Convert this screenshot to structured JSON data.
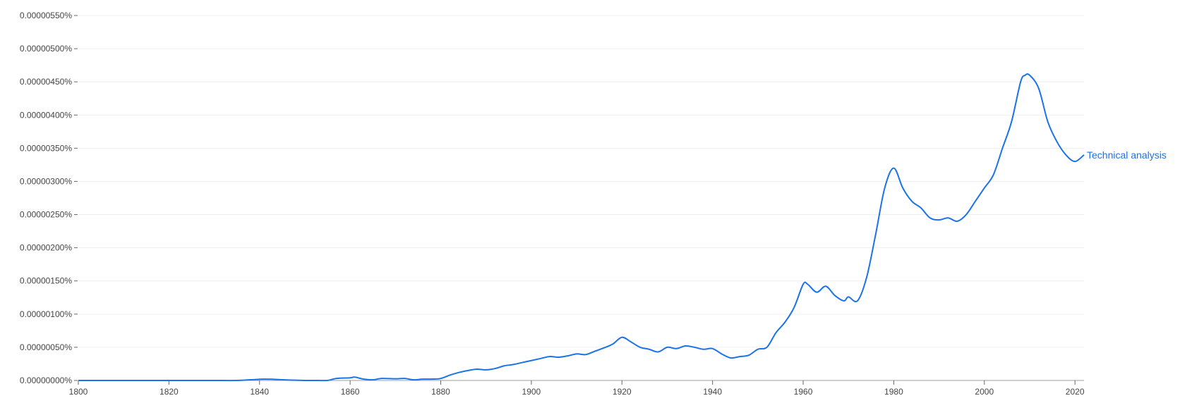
{
  "chart_data": {
    "type": "line",
    "title": "",
    "xlabel": "",
    "ylabel": "",
    "xlim": [
      1800,
      2022
    ],
    "ylim": [
      0,
      5.5e-06
    ],
    "grid": true,
    "legend": "end-of-line label",
    "x_ticks": [
      1800,
      1820,
      1840,
      1860,
      1880,
      1900,
      1920,
      1940,
      1960,
      1980,
      2000,
      2020
    ],
    "x_tick_labels": [
      "1800",
      "1820",
      "1840",
      "1860",
      "1880",
      "1900",
      "1920",
      "1940",
      "1960",
      "1980",
      "2000",
      "2020"
    ],
    "y_ticks": [
      0,
      5e-07,
      1e-06,
      1.5e-06,
      2e-06,
      2.5e-06,
      3e-06,
      3.5e-06,
      4e-06,
      4.5e-06,
      5e-06,
      5.5e-06
    ],
    "y_tick_labels": [
      "0.00000000%",
      "0.00000050%",
      "0.00000100%",
      "0.00000150%",
      "0.00000200%",
      "0.00000250%",
      "0.00000300%",
      "0.00000350%",
      "0.00000400%",
      "0.00000450%",
      "0.00000500%",
      "0.00000550%"
    ],
    "series": [
      {
        "name": "Technical analysis",
        "color": "#1a73e8",
        "x": [
          1800,
          1805,
          1810,
          1815,
          1820,
          1825,
          1830,
          1835,
          1838,
          1841,
          1844,
          1847,
          1850,
          1853,
          1855,
          1857,
          1860,
          1861,
          1863,
          1865,
          1867,
          1870,
          1872,
          1874,
          1876,
          1878,
          1880,
          1882,
          1884,
          1886,
          1888,
          1890,
          1892,
          1894,
          1896,
          1898,
          1900,
          1902,
          1904,
          1906,
          1908,
          1910,
          1912,
          1914,
          1916,
          1918,
          1920,
          1922,
          1924,
          1926,
          1928,
          1930,
          1932,
          1934,
          1936,
          1938,
          1940,
          1942,
          1944,
          1946,
          1948,
          1950,
          1952,
          1954,
          1956,
          1958,
          1960,
          1961,
          1963,
          1965,
          1967,
          1969,
          1970,
          1972,
          1974,
          1976,
          1978,
          1980,
          1982,
          1984,
          1986,
          1988,
          1990,
          1992,
          1994,
          1996,
          1998,
          2000,
          2002,
          2004,
          2006,
          2008,
          2009,
          2010,
          2012,
          2014,
          2016,
          2018,
          2020,
          2022
        ],
        "values": [
          0,
          0,
          0,
          0,
          0,
          0,
          0,
          0,
          1e-08,
          2e-08,
          1.5e-08,
          5e-09,
          0,
          0,
          0,
          3e-08,
          4e-08,
          5e-08,
          2e-08,
          1e-08,
          3e-08,
          2.5e-08,
          3e-08,
          1e-08,
          2e-08,
          2e-08,
          3e-08,
          8e-08,
          1.2e-07,
          1.5e-07,
          1.7e-07,
          1.6e-07,
          1.8e-07,
          2.2e-07,
          2.4e-07,
          2.7e-07,
          3e-07,
          3.3e-07,
          3.6e-07,
          3.5e-07,
          3.7e-07,
          4e-07,
          3.9e-07,
          4.4e-07,
          4.9e-07,
          5.5e-07,
          6.5e-07,
          5.8e-07,
          5e-07,
          4.7e-07,
          4.3e-07,
          5e-07,
          4.8e-07,
          5.2e-07,
          5e-07,
          4.7e-07,
          4.8e-07,
          4e-07,
          3.4e-07,
          3.6e-07,
          3.8e-07,
          4.7e-07,
          5e-07,
          7.2e-07,
          8.8e-07,
          1.1e-06,
          1.45e-06,
          1.45e-06,
          1.33e-06,
          1.42e-06,
          1.28e-06,
          1.2e-06,
          1.26e-06,
          1.2e-06,
          1.55e-06,
          2.2e-06,
          2.9e-06,
          3.2e-06,
          2.9e-06,
          2.7e-06,
          2.6e-06,
          2.45e-06,
          2.42e-06,
          2.45e-06,
          2.4e-06,
          2.5e-06,
          2.7e-06,
          2.9e-06,
          3.1e-06,
          3.5e-06,
          3.9e-06,
          4.5e-06,
          4.6e-06,
          4.6e-06,
          4.4e-06,
          3.9e-06,
          3.6e-06,
          3.4e-06,
          3.3e-06,
          3.4e-06
        ]
      }
    ]
  }
}
